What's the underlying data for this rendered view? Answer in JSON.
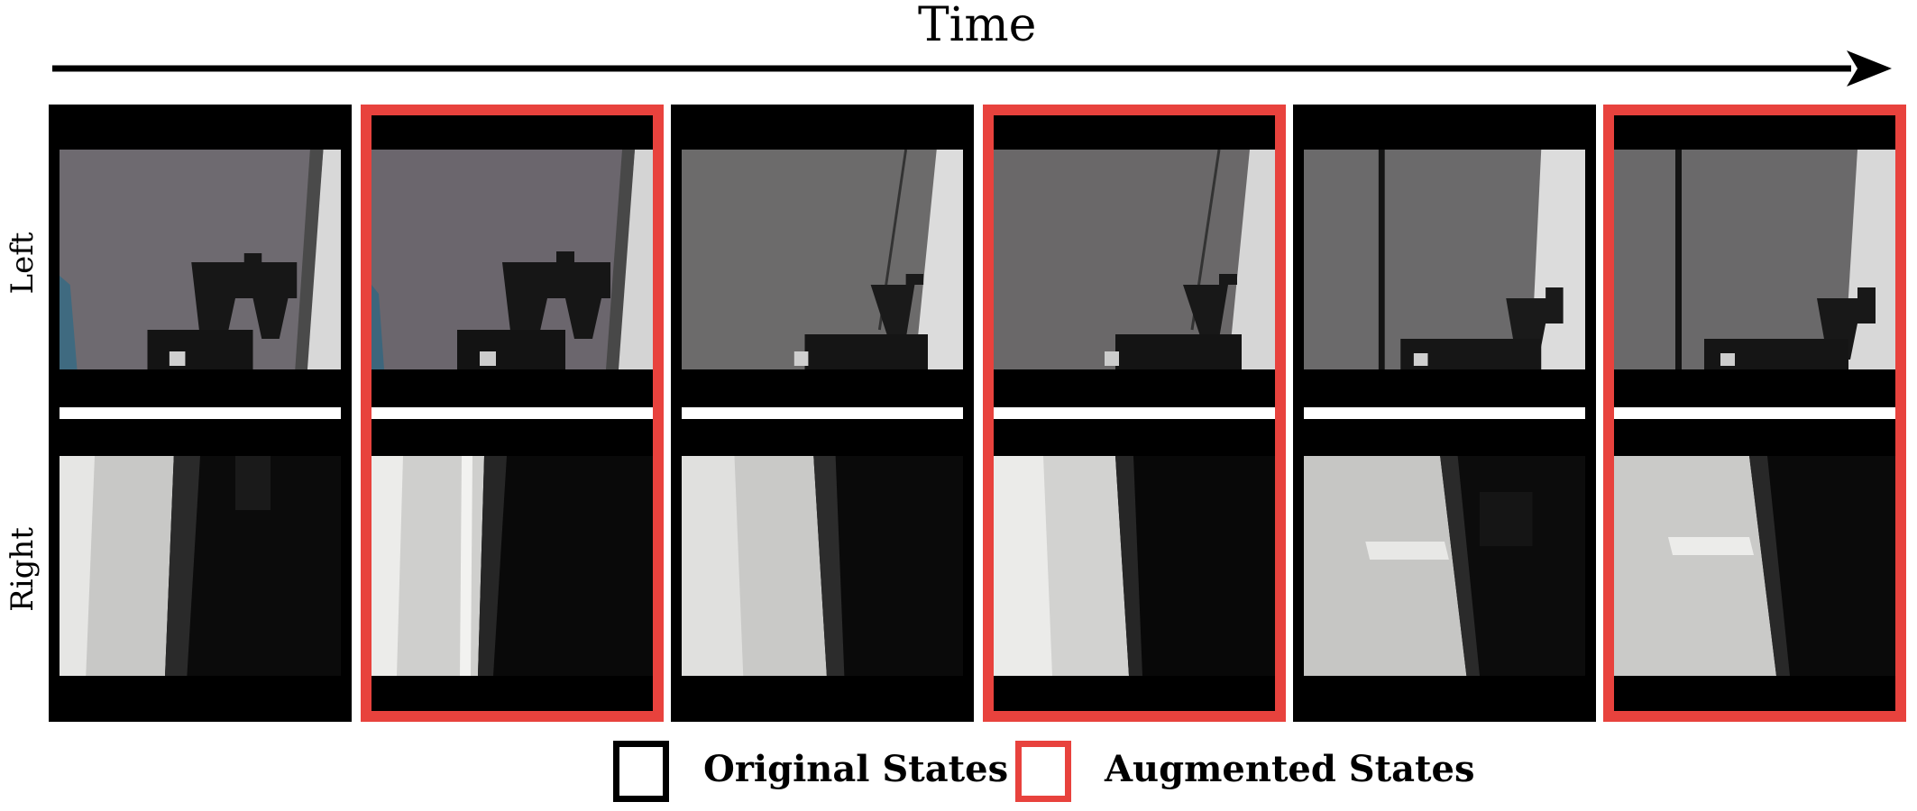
{
  "figure": {
    "time_label": "Time",
    "row_labels": {
      "left": "Left",
      "right": "Right"
    },
    "frames": [
      {
        "state": "original"
      },
      {
        "state": "augmented"
      },
      {
        "state": "original"
      },
      {
        "state": "augmented"
      },
      {
        "state": "original"
      },
      {
        "state": "augmented"
      }
    ],
    "legend": {
      "original_label": "Original States",
      "augmented_label": "Augmented States"
    },
    "colors": {
      "original_border": "#000000",
      "augmented_border": "#e8423d",
      "arrow": "#000000"
    }
  }
}
